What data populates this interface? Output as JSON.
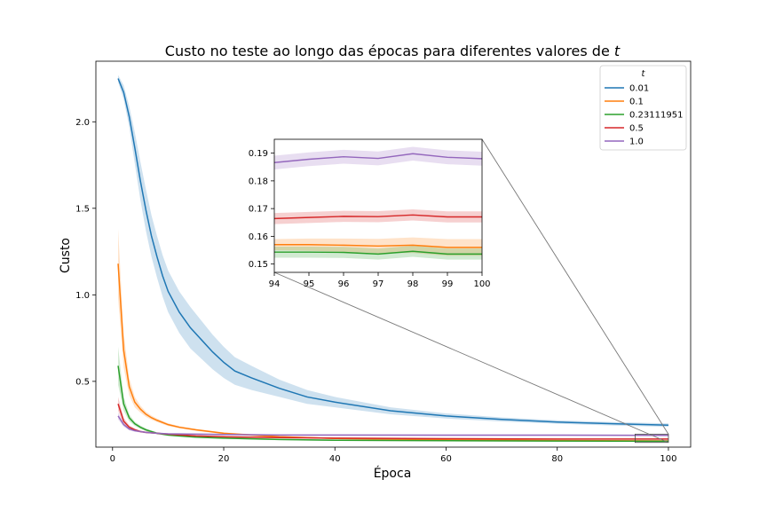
{
  "chart_data": {
    "type": "line",
    "title": "Custo no teste ao longo das épocas para diferentes valores de",
    "title_var": "t",
    "xlabel": "Época",
    "ylabel": "Custo",
    "xlim": [
      -3,
      104
    ],
    "ylim": [
      0.12,
      2.35
    ],
    "xticks": [
      "0",
      "20",
      "40",
      "60",
      "80",
      "100"
    ],
    "yticks": [
      "0.5",
      "1.0",
      "1.5",
      "2.0"
    ],
    "legend": {
      "title": "t",
      "placement": "top-right"
    },
    "series": [
      {
        "name": "0.01",
        "color": "#1f77b4",
        "x": [
          1,
          2,
          3,
          4,
          5,
          6,
          7,
          8,
          9,
          10,
          12,
          14,
          16,
          18,
          20,
          22,
          25,
          30,
          35,
          40,
          50,
          60,
          70,
          80,
          90,
          100
        ],
        "values": [
          2.25,
          2.17,
          2.03,
          1.85,
          1.66,
          1.49,
          1.34,
          1.22,
          1.11,
          1.02,
          0.9,
          0.81,
          0.74,
          0.67,
          0.61,
          0.56,
          0.52,
          0.46,
          0.41,
          0.38,
          0.33,
          0.3,
          0.28,
          0.265,
          0.255,
          0.247
        ],
        "band": [
          0.02,
          0.04,
          0.06,
          0.09,
          0.11,
          0.12,
          0.12,
          0.12,
          0.12,
          0.12,
          0.12,
          0.12,
          0.11,
          0.1,
          0.09,
          0.08,
          0.07,
          0.05,
          0.04,
          0.03,
          0.02,
          0.015,
          0.012,
          0.01,
          0.01,
          0.01
        ]
      },
      {
        "name": "0.1",
        "color": "#ff7f0e",
        "x": [
          1,
          2,
          3,
          4,
          5,
          6,
          7,
          8,
          10,
          12,
          15,
          20,
          25,
          30,
          40,
          60,
          80,
          100
        ],
        "values": [
          1.18,
          0.68,
          0.47,
          0.38,
          0.34,
          0.31,
          0.29,
          0.275,
          0.25,
          0.235,
          0.22,
          0.2,
          0.19,
          0.18,
          0.17,
          0.162,
          0.158,
          0.156
        ],
        "band": [
          0.2,
          0.1,
          0.05,
          0.03,
          0.02,
          0.015,
          0.012,
          0.01,
          0.008,
          0.007,
          0.006,
          0.005,
          0.005,
          0.004,
          0.004,
          0.004,
          0.004,
          0.004
        ]
      },
      {
        "name": "0.23111951",
        "color": "#2ca02c",
        "x": [
          1,
          2,
          3,
          4,
          5,
          6,
          7,
          8,
          10,
          12,
          15,
          20,
          25,
          30,
          40,
          60,
          80,
          100
        ],
        "values": [
          0.59,
          0.37,
          0.29,
          0.255,
          0.235,
          0.22,
          0.21,
          0.2,
          0.19,
          0.185,
          0.178,
          0.172,
          0.168,
          0.164,
          0.16,
          0.157,
          0.155,
          0.154
        ],
        "band": [
          0.11,
          0.04,
          0.02,
          0.012,
          0.01,
          0.008,
          0.007,
          0.006,
          0.005,
          0.005,
          0.004,
          0.004,
          0.004,
          0.004,
          0.004,
          0.004,
          0.004,
          0.004
        ]
      },
      {
        "name": "0.5",
        "color": "#d62728",
        "x": [
          1,
          2,
          3,
          4,
          5,
          6,
          8,
          10,
          15,
          20,
          30,
          40,
          60,
          80,
          100
        ],
        "values": [
          0.37,
          0.27,
          0.235,
          0.22,
          0.21,
          0.205,
          0.2,
          0.195,
          0.185,
          0.18,
          0.175,
          0.172,
          0.169,
          0.167,
          0.167
        ],
        "band": [
          0.04,
          0.02,
          0.012,
          0.008,
          0.006,
          0.005,
          0.004,
          0.004,
          0.004,
          0.004,
          0.004,
          0.004,
          0.004,
          0.004,
          0.004
        ]
      },
      {
        "name": "1.0",
        "color": "#9467bd",
        "x": [
          1,
          2,
          3,
          4,
          5,
          6,
          8,
          10,
          15,
          20,
          30,
          40,
          60,
          80,
          100
        ],
        "values": [
          0.3,
          0.25,
          0.225,
          0.215,
          0.21,
          0.205,
          0.2,
          0.197,
          0.195,
          0.193,
          0.19,
          0.19,
          0.189,
          0.189,
          0.188
        ],
        "band": [
          0.02,
          0.012,
          0.008,
          0.006,
          0.005,
          0.005,
          0.004,
          0.004,
          0.004,
          0.004,
          0.004,
          0.004,
          0.004,
          0.004,
          0.004
        ]
      }
    ],
    "inset": {
      "xlim": [
        94,
        100
      ],
      "ylim": [
        0.147,
        0.195
      ],
      "xticks": [
        "94",
        "95",
        "96",
        "97",
        "98",
        "99",
        "100"
      ],
      "yticks": [
        "0.15",
        "0.16",
        "0.17",
        "0.18",
        "0.19"
      ],
      "series": [
        {
          "name": "0.01",
          "x": [
            94,
            95,
            96,
            97,
            98,
            99,
            100
          ],
          "values": [
            0.25,
            0.249,
            0.248,
            0.248,
            0.247,
            0.247,
            0.247
          ],
          "band": [
            0.01,
            0.01,
            0.01,
            0.01,
            0.01,
            0.01,
            0.01
          ]
        },
        {
          "name": "0.1",
          "x": [
            94,
            95,
            96,
            97,
            98,
            99,
            100
          ],
          "values": [
            0.157,
            0.157,
            0.1568,
            0.1565,
            0.1568,
            0.156,
            0.156
          ],
          "band": [
            0.002,
            0.0022,
            0.0024,
            0.0026,
            0.0028,
            0.003,
            0.003
          ]
        },
        {
          "name": "0.23111951",
          "x": [
            94,
            95,
            96,
            97,
            98,
            99,
            100
          ],
          "values": [
            0.1543,
            0.1543,
            0.1542,
            0.1536,
            0.1546,
            0.1536,
            0.1536
          ],
          "band": [
            0.002,
            0.002,
            0.002,
            0.002,
            0.002,
            0.002,
            0.002
          ]
        },
        {
          "name": "0.5",
          "x": [
            94,
            95,
            96,
            97,
            98,
            99,
            100
          ],
          "values": [
            0.1664,
            0.1668,
            0.1672,
            0.1671,
            0.1677,
            0.167,
            0.167
          ],
          "band": [
            0.002,
            0.002,
            0.002,
            0.002,
            0.002,
            0.002,
            0.002
          ]
        },
        {
          "name": "1.0",
          "x": [
            94,
            95,
            96,
            97,
            98,
            99,
            100
          ],
          "values": [
            0.1866,
            0.1878,
            0.1887,
            0.1881,
            0.1898,
            0.1885,
            0.188
          ],
          "band": [
            0.0025,
            0.0025,
            0.0025,
            0.0025,
            0.0025,
            0.0025,
            0.0025
          ]
        }
      ]
    }
  }
}
